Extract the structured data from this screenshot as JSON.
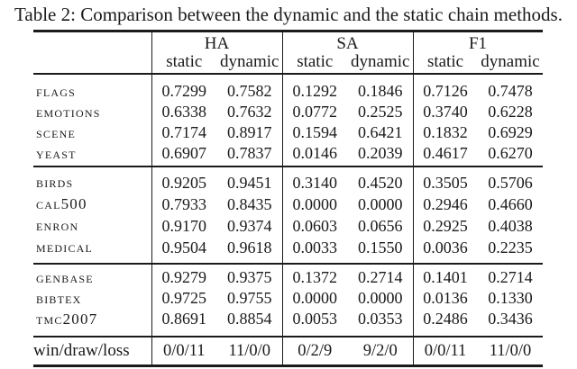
{
  "caption": "Table 2: Comparison between the dynamic and the static chain methods.",
  "columns": {
    "groups": [
      {
        "label": "HA",
        "static": "static",
        "dynamic": "dynamic"
      },
      {
        "label": "SA",
        "static": "static",
        "dynamic": "dynamic"
      },
      {
        "label": "F1",
        "static": "static",
        "dynamic": "dynamic"
      }
    ]
  },
  "sections": [
    {
      "rows": [
        {
          "name": "flags",
          "values": [
            "0.7299",
            "0.7582",
            "0.1292",
            "0.1846",
            "0.7126",
            "0.7478"
          ]
        },
        {
          "name": "emotions",
          "values": [
            "0.6338",
            "0.7632",
            "0.0772",
            "0.2525",
            "0.3740",
            "0.6228"
          ]
        },
        {
          "name": "scene",
          "values": [
            "0.7174",
            "0.8917",
            "0.1594",
            "0.6421",
            "0.1832",
            "0.6929"
          ]
        },
        {
          "name": "yeast",
          "values": [
            "0.6907",
            "0.7837",
            "0.0146",
            "0.2039",
            "0.4617",
            "0.6270"
          ]
        }
      ]
    },
    {
      "rows": [
        {
          "name": "birds",
          "values": [
            "0.9205",
            "0.9451",
            "0.3140",
            "0.4520",
            "0.3505",
            "0.5706"
          ]
        },
        {
          "name": "cal500",
          "values": [
            "0.7933",
            "0.8435",
            "0.0000",
            "0.0000",
            "0.2946",
            "0.4660"
          ]
        },
        {
          "name": "enron",
          "values": [
            "0.9170",
            "0.9374",
            "0.0603",
            "0.0656",
            "0.2925",
            "0.4038"
          ]
        },
        {
          "name": "medical",
          "values": [
            "0.9504",
            "0.9618",
            "0.0033",
            "0.1550",
            "0.0036",
            "0.2235"
          ]
        }
      ]
    },
    {
      "rows": [
        {
          "name": "genbase",
          "values": [
            "0.9279",
            "0.9375",
            "0.1372",
            "0.2714",
            "0.1401",
            "0.2714"
          ]
        },
        {
          "name": "bibtex",
          "values": [
            "0.9725",
            "0.9755",
            "0.0000",
            "0.0000",
            "0.0136",
            "0.1330"
          ]
        },
        {
          "name": "tmc2007",
          "values": [
            "0.8691",
            "0.8854",
            "0.0053",
            "0.0353",
            "0.2486",
            "0.3436"
          ]
        }
      ]
    }
  ],
  "footer": {
    "label": "win/draw/loss",
    "values": [
      "0/0/11",
      "11/0/0",
      "0/2/9",
      "9/2/0",
      "0/0/11",
      "11/0/0"
    ]
  }
}
